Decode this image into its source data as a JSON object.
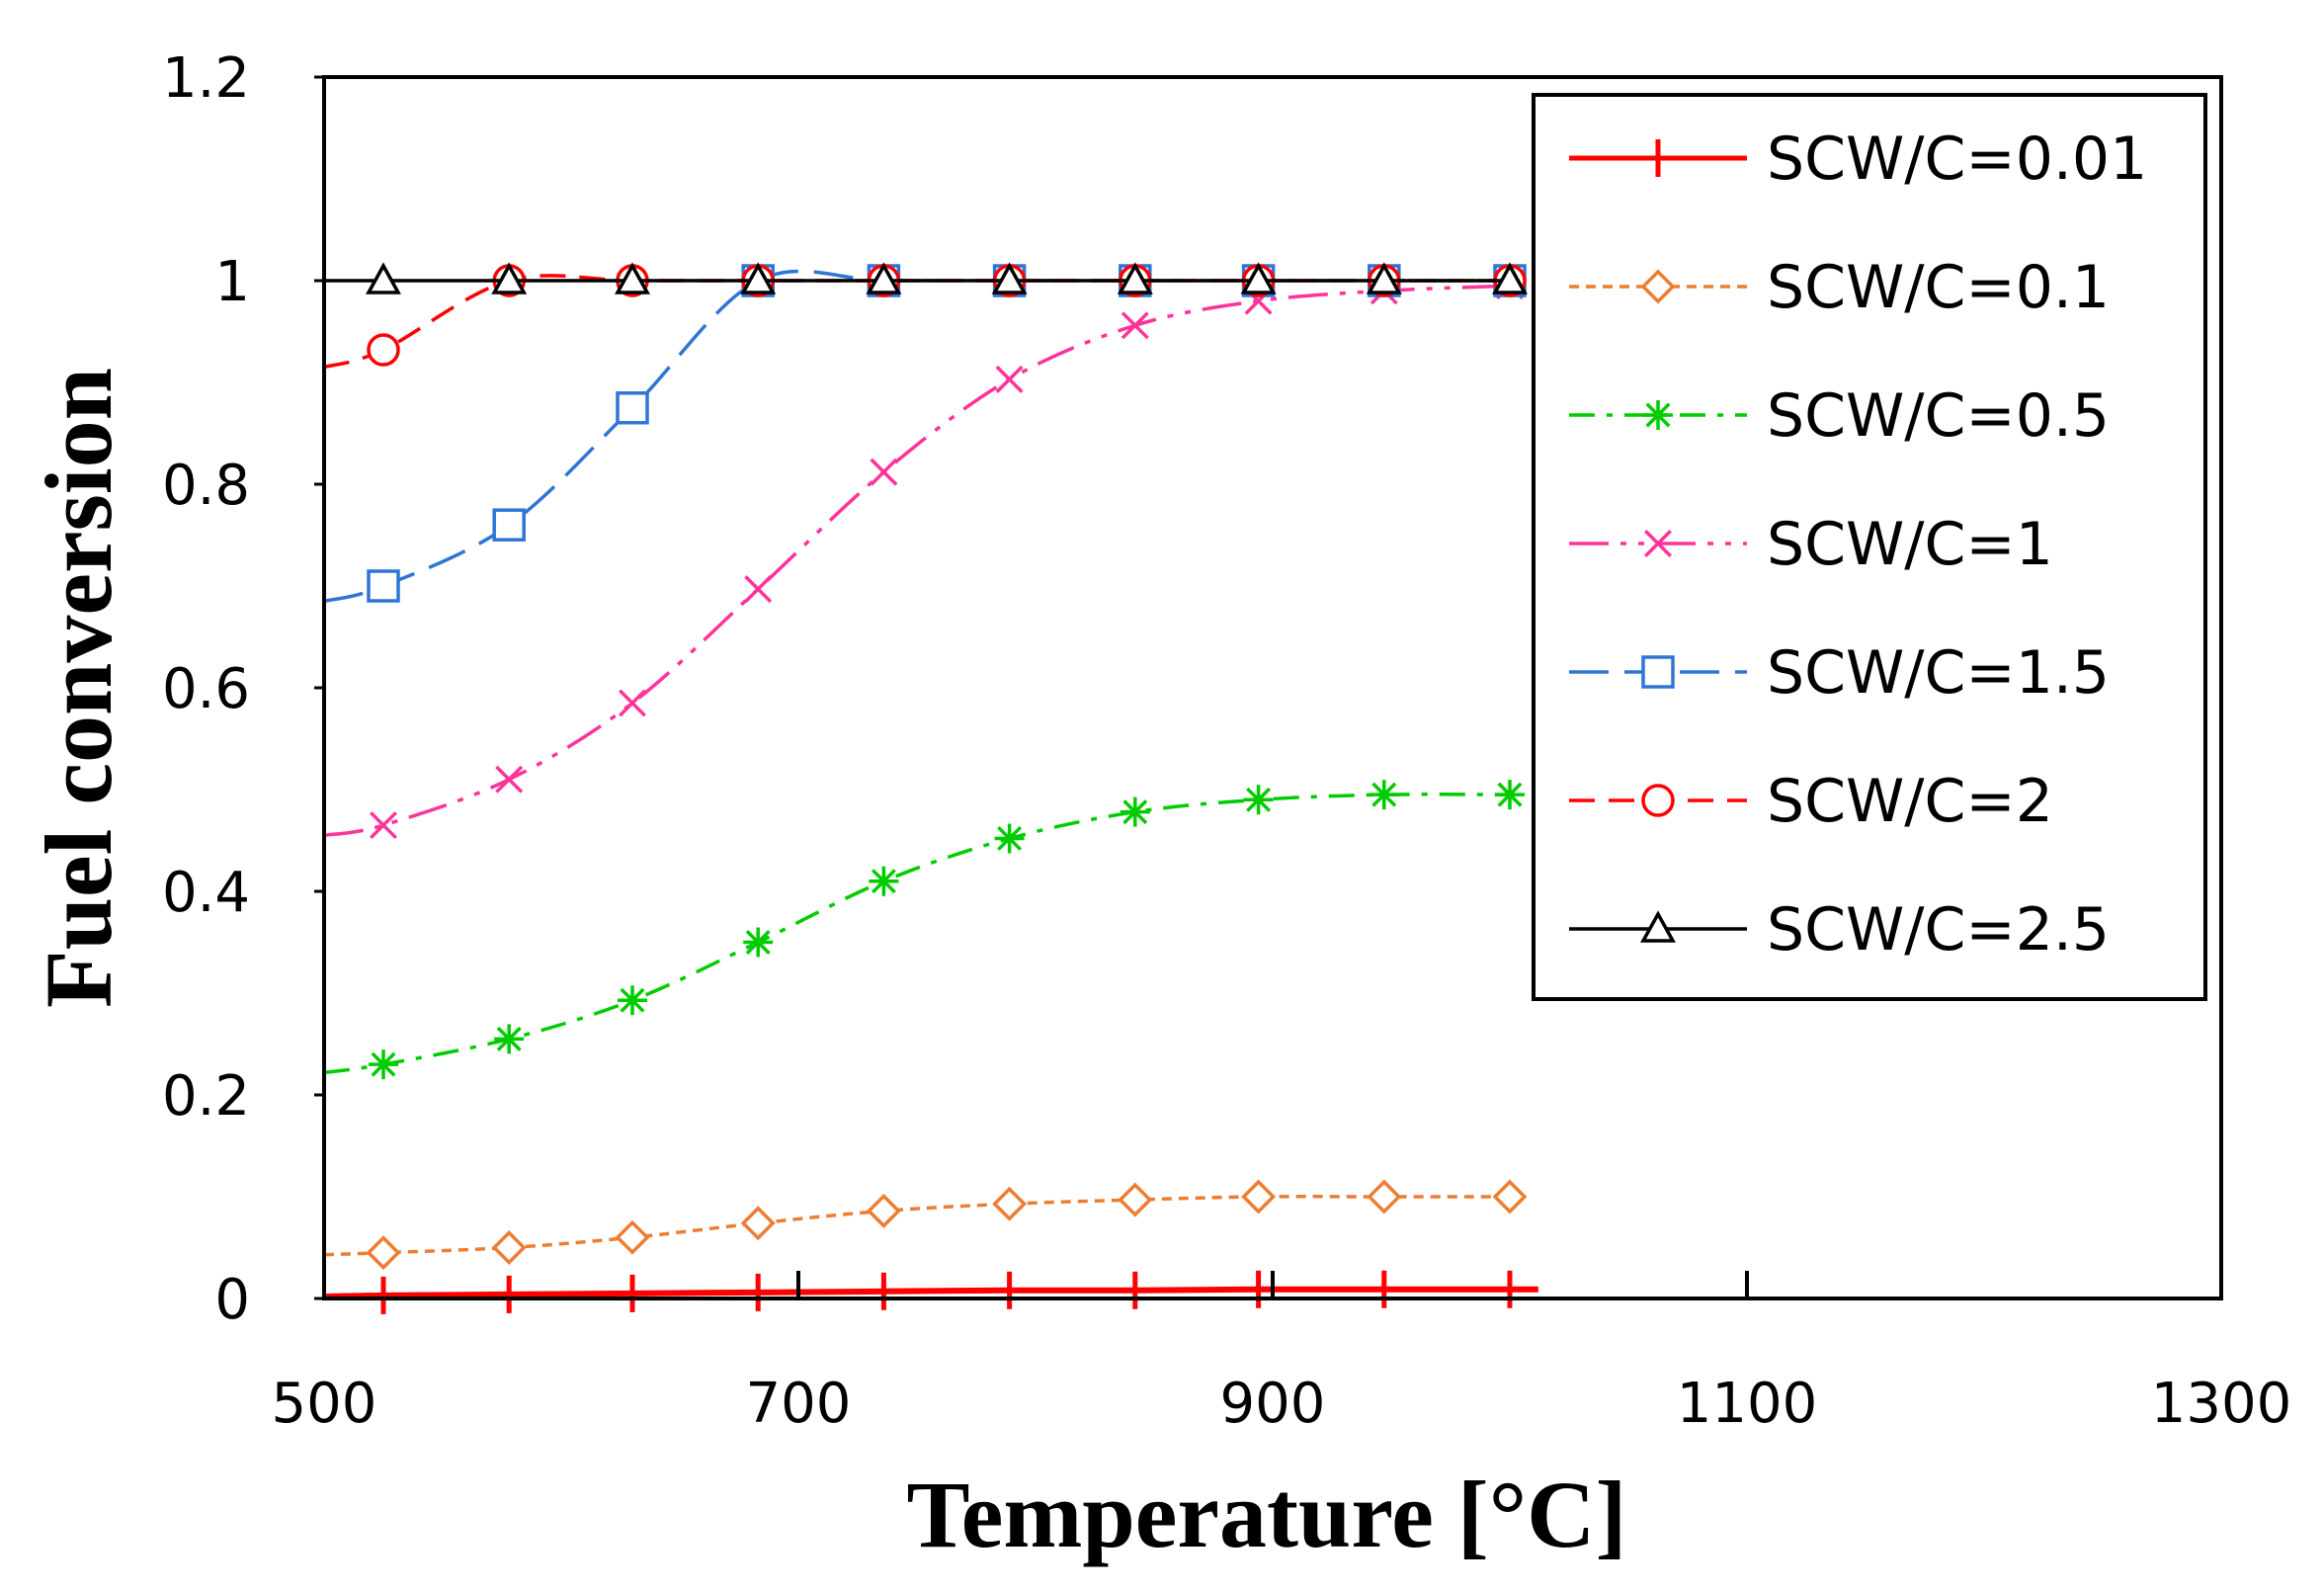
{
  "chart_data": {
    "type": "line",
    "title": "",
    "xlabel": "Temperature [°C]",
    "ylabel": "Fuel conversion",
    "xlim": [
      500,
      1300
    ],
    "ylim": [
      0,
      1.2
    ],
    "xticks": [
      500,
      700,
      900,
      1100,
      1300
    ],
    "xtick_labels": [
      "500",
      "700",
      "900",
      "1100",
      "1300"
    ],
    "yticks": [
      0,
      0.2,
      0.4,
      0.6,
      0.8,
      1.0,
      1.2
    ],
    "ytick_labels": [
      "0",
      "0.2",
      "0.4",
      "0.6",
      "0.8",
      "1",
      "1.2"
    ],
    "grid": false,
    "legend_position": "top-right",
    "x": [
      525,
      578,
      630,
      683,
      736,
      789,
      842,
      894,
      947,
      1000
    ],
    "series": [
      {
        "name": "SCW/C=0.01",
        "color": "#ff0000",
        "dash": "solid",
        "marker": "plus",
        "values": [
          0.003,
          0.004,
          0.005,
          0.006,
          0.007,
          0.008,
          0.008,
          0.009,
          0.009,
          0.009
        ]
      },
      {
        "name": "SCW/C=0.1",
        "color": "#ed7d31",
        "dash": "short",
        "marker": "diamond",
        "values": [
          0.045,
          0.05,
          0.06,
          0.074,
          0.086,
          0.093,
          0.097,
          0.1,
          0.1,
          0.1
        ]
      },
      {
        "name": "SCW/C=0.5",
        "color": "#00cc00",
        "dash": "dashdot",
        "marker": "asterisk",
        "values": [
          0.23,
          0.255,
          0.293,
          0.35,
          0.41,
          0.452,
          0.478,
          0.49,
          0.495,
          0.495
        ]
      },
      {
        "name": "SCW/C=1",
        "color": "#ff3399",
        "dash": "longdashdotdot",
        "marker": "x",
        "values": [
          0.465,
          0.51,
          0.585,
          0.697,
          0.812,
          0.903,
          0.956,
          0.98,
          0.99,
          0.995
        ]
      },
      {
        "name": "SCW/C=1.5",
        "color": "#2f75d6",
        "dash": "longdash",
        "marker": "square",
        "values": [
          0.7,
          0.76,
          0.875,
          1.0,
          1.0,
          1.0,
          1.0,
          1.0,
          1.0,
          1.0
        ]
      },
      {
        "name": "SCW/C=2",
        "color": "#ff0000",
        "dash": "dash",
        "marker": "circle",
        "values": [
          0.932,
          1.0,
          1.0,
          1.0,
          1.0,
          1.0,
          1.0,
          1.0,
          1.0,
          1.0
        ]
      },
      {
        "name": "SCW/C=2.5",
        "color": "#000000",
        "dash": "solid",
        "marker": "triangle",
        "values": [
          1.0,
          1.0,
          1.0,
          1.0,
          1.0,
          1.0,
          1.0,
          1.0,
          1.0,
          1.0
        ]
      }
    ]
  }
}
